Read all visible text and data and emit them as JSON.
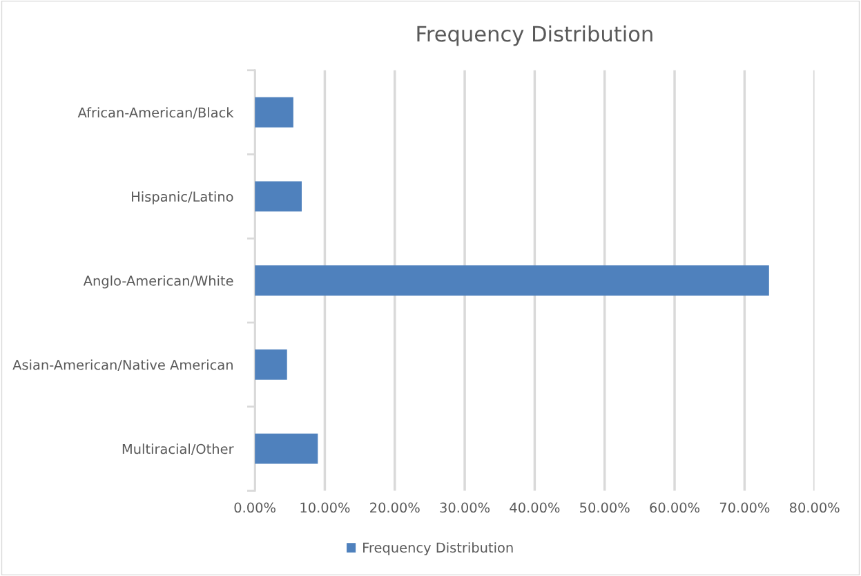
{
  "chart_data": {
    "type": "bar",
    "orientation": "horizontal",
    "title": "Frequency Distribution",
    "categories": [
      "African-American/Black",
      "Hispanic/Latino",
      "Anglo-American/White",
      "Asian-American/Native American",
      "Multiracial/Other"
    ],
    "series": [
      {
        "name": "Frequency Distribution",
        "color": "#4f81bd",
        "values": [
          5.5,
          6.7,
          73.5,
          4.6,
          9.0
        ]
      }
    ],
    "xlim": [
      0,
      80
    ],
    "xticks": [
      {
        "value": 0,
        "label": "0.00%"
      },
      {
        "value": 10,
        "label": "10.00%"
      },
      {
        "value": 20,
        "label": "20.00%"
      },
      {
        "value": 30,
        "label": "30.00%"
      },
      {
        "value": 40,
        "label": "40.00%"
      },
      {
        "value": 50,
        "label": "50.00%"
      },
      {
        "value": 60,
        "label": "60.00%"
      },
      {
        "value": 70,
        "label": "70.00%"
      },
      {
        "value": 80,
        "label": "80.00%"
      }
    ],
    "grid": "x",
    "legend": "bottom"
  }
}
